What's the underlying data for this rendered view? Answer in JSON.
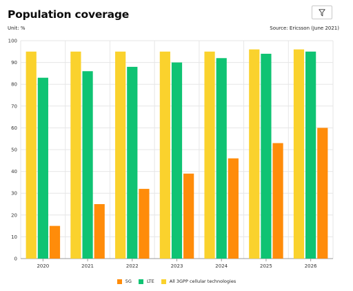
{
  "header": {
    "title": "Population coverage",
    "unit": "Unit: %",
    "source": "Source: Ericsson (June 2021)"
  },
  "toolbar": {
    "filter_icon": "filter-icon"
  },
  "colors": {
    "5G": "#ff8c0a",
    "LTE": "#0fc373",
    "All 3GPP cellular technologies": "#fad22d",
    "grid": "#e6e6e6",
    "axis": "#999999"
  },
  "chart_data": {
    "type": "bar",
    "categories": [
      "2020",
      "2021",
      "2022",
      "2023",
      "2024",
      "2025",
      "2026"
    ],
    "series": [
      {
        "name": "All 3GPP cellular technologies",
        "values": [
          95,
          95,
          95,
          95,
          95,
          96,
          96
        ]
      },
      {
        "name": "LTE",
        "values": [
          83,
          86,
          88,
          90,
          92,
          94,
          95
        ]
      },
      {
        "name": "5G",
        "values": [
          15,
          25,
          32,
          39,
          46,
          53,
          60
        ]
      }
    ],
    "yticks": [
      "0",
      "10",
      "20",
      "30",
      "40",
      "50",
      "60",
      "70",
      "80",
      "90",
      "100"
    ],
    "ylim": [
      0,
      100
    ],
    "grid": true,
    "legend_position": "bottom-center",
    "legend": [
      "5G",
      "LTE",
      "All 3GPP cellular technologies"
    ]
  }
}
